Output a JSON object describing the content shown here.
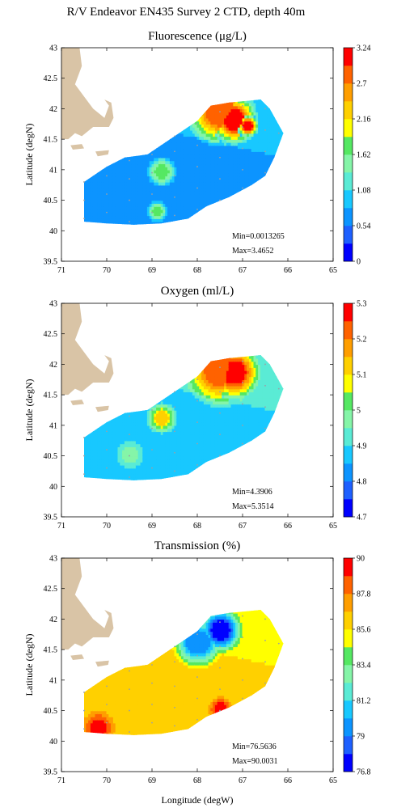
{
  "figure_title": "R/V Endeavor EN435 Survey 2 CTD, depth 40m",
  "xlabel": "Longitude (degW)",
  "ylabel": "Latitude (degN)",
  "colors": {
    "land": "#d9c4a6",
    "station_marker": "#9aa0a8",
    "scale": [
      "#0000ff",
      "#1e60ff",
      "#0c94ff",
      "#18c8ff",
      "#5aebd5",
      "#85f5a8",
      "#55e862",
      "#ffff00",
      "#ffd000",
      "#ff9e00",
      "#ff6200",
      "#ff0000"
    ]
  },
  "chart_data": [
    {
      "type": "heatmap",
      "title": "Fluorescence (μg/L)",
      "xlim": [
        71,
        65
      ],
      "ylim": [
        39.5,
        43
      ],
      "xticks": [
        "71",
        "70",
        "69",
        "68",
        "67",
        "66",
        "65"
      ],
      "yticks": [
        "39.5",
        "40",
        "40.5",
        "41",
        "41.5",
        "42",
        "42.5",
        "43"
      ],
      "colorbar_ticks": [
        "0",
        "0.54",
        "1.08",
        "1.62",
        "2.16",
        "2.7",
        "3.24"
      ],
      "min_text": "Min=0.0013265",
      "max_text": "Max=3.4652",
      "min_value": 0.0013265,
      "max_value": 3.4652,
      "hot_spots": [
        {
          "lon": 67.2,
          "lat": 41.8,
          "level": 11,
          "r": 0.55
        },
        {
          "lon": 67.5,
          "lat": 41.95,
          "level": 10,
          "r": 0.8
        },
        {
          "lon": 66.9,
          "lat": 41.7,
          "level": 11,
          "r": 0.25
        },
        {
          "lon": 68.8,
          "lat": 40.95,
          "level": 6,
          "r": 0.35
        },
        {
          "lon": 68.9,
          "lat": 40.3,
          "level": 6,
          "r": 0.25
        }
      ],
      "base_level": 2
    },
    {
      "type": "heatmap",
      "title": "Oxygen (ml/L)",
      "xlim": [
        71,
        65
      ],
      "ylim": [
        39.5,
        43
      ],
      "xticks": [
        "71",
        "70",
        "69",
        "68",
        "67",
        "66",
        "65"
      ],
      "yticks": [
        "39.5",
        "40",
        "40.5",
        "41",
        "41.5",
        "42",
        "42.5",
        "43"
      ],
      "colorbar_ticks": [
        "4.7",
        "4.8",
        "4.9",
        "5",
        "5.1",
        "5.2",
        "5.3"
      ],
      "min_text": "Min=4.3906",
      "max_text": "Max=5.3514",
      "min_value": 4.3906,
      "max_value": 5.3514,
      "hot_spots": [
        {
          "lon": 67.2,
          "lat": 41.85,
          "level": 11,
          "r": 0.6
        },
        {
          "lon": 67.5,
          "lat": 41.9,
          "level": 10,
          "r": 0.85
        },
        {
          "lon": 68.8,
          "lat": 41.1,
          "level": 8,
          "r": 0.35
        },
        {
          "lon": 69.5,
          "lat": 40.5,
          "level": 5,
          "r": 0.35
        }
      ],
      "base_level": 3
    },
    {
      "type": "heatmap",
      "title": "Transmission (%)",
      "xlim": [
        71,
        65
      ],
      "ylim": [
        39.5,
        43
      ],
      "xticks": [
        "71",
        "70",
        "69",
        "68",
        "67",
        "66",
        "65"
      ],
      "yticks": [
        "39.5",
        "40",
        "40.5",
        "41",
        "41.5",
        "42",
        "42.5",
        "43"
      ],
      "colorbar_ticks": [
        "76.8",
        "79",
        "81.2",
        "83.4",
        "85.6",
        "87.8",
        "90"
      ],
      "min_text": "Min=76.5636",
      "max_text": "Max=90.0031",
      "min_value": 76.5636,
      "max_value": 90.0031,
      "hot_spots": [
        {
          "lon": 67.5,
          "lat": 41.8,
          "level": 0,
          "r": 0.5
        },
        {
          "lon": 68.0,
          "lat": 41.6,
          "level": 2,
          "r": 0.6
        },
        {
          "lon": 69.2,
          "lat": 41.7,
          "level": 11,
          "r": 0.3
        },
        {
          "lon": 70.2,
          "lat": 40.2,
          "level": 11,
          "r": 0.4
        },
        {
          "lon": 67.5,
          "lat": 40.5,
          "level": 11,
          "r": 0.3
        }
      ],
      "base_level": 8
    }
  ]
}
